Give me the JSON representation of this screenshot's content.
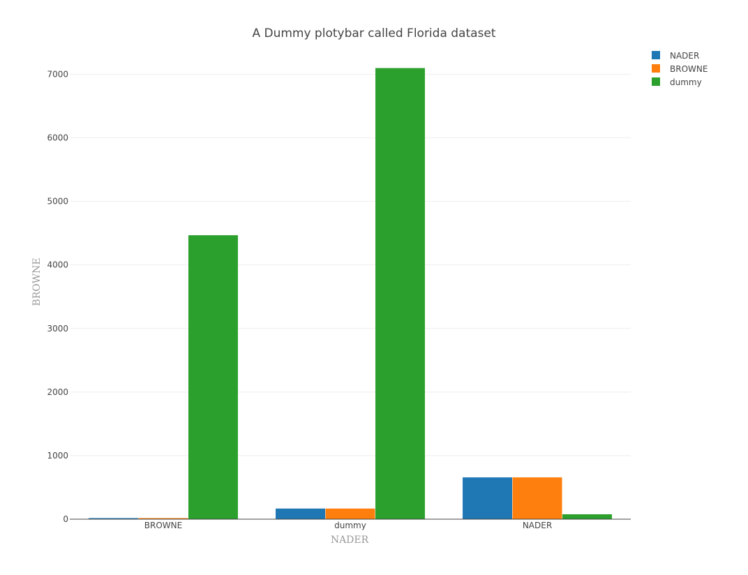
{
  "chart_data": {
    "type": "bar",
    "title": "A Dummy plotybar called Florida dataset",
    "xlabel": "NADER",
    "ylabel": "BROWNE",
    "categories": [
      "BROWNE",
      "dummy",
      "NADER"
    ],
    "series": [
      {
        "name": "NADER",
        "color": "#1f77b4",
        "values": [
          20,
          170,
          660
        ]
      },
      {
        "name": "BROWNE",
        "color": "#ff7f0e",
        "values": [
          20,
          170,
          660
        ]
      },
      {
        "name": "dummy",
        "color": "#2ca02c",
        "values": [
          4470,
          7100,
          80
        ]
      }
    ],
    "ylim": [
      0,
      7400
    ],
    "yticks": [
      0,
      1000,
      2000,
      3000,
      4000,
      5000,
      6000,
      7000
    ],
    "ytick_labels": [
      "0",
      "1000",
      "2000",
      "3000",
      "4000",
      "5000",
      "6000",
      "7000"
    ],
    "grid": true,
    "legend_position": "top-right"
  }
}
